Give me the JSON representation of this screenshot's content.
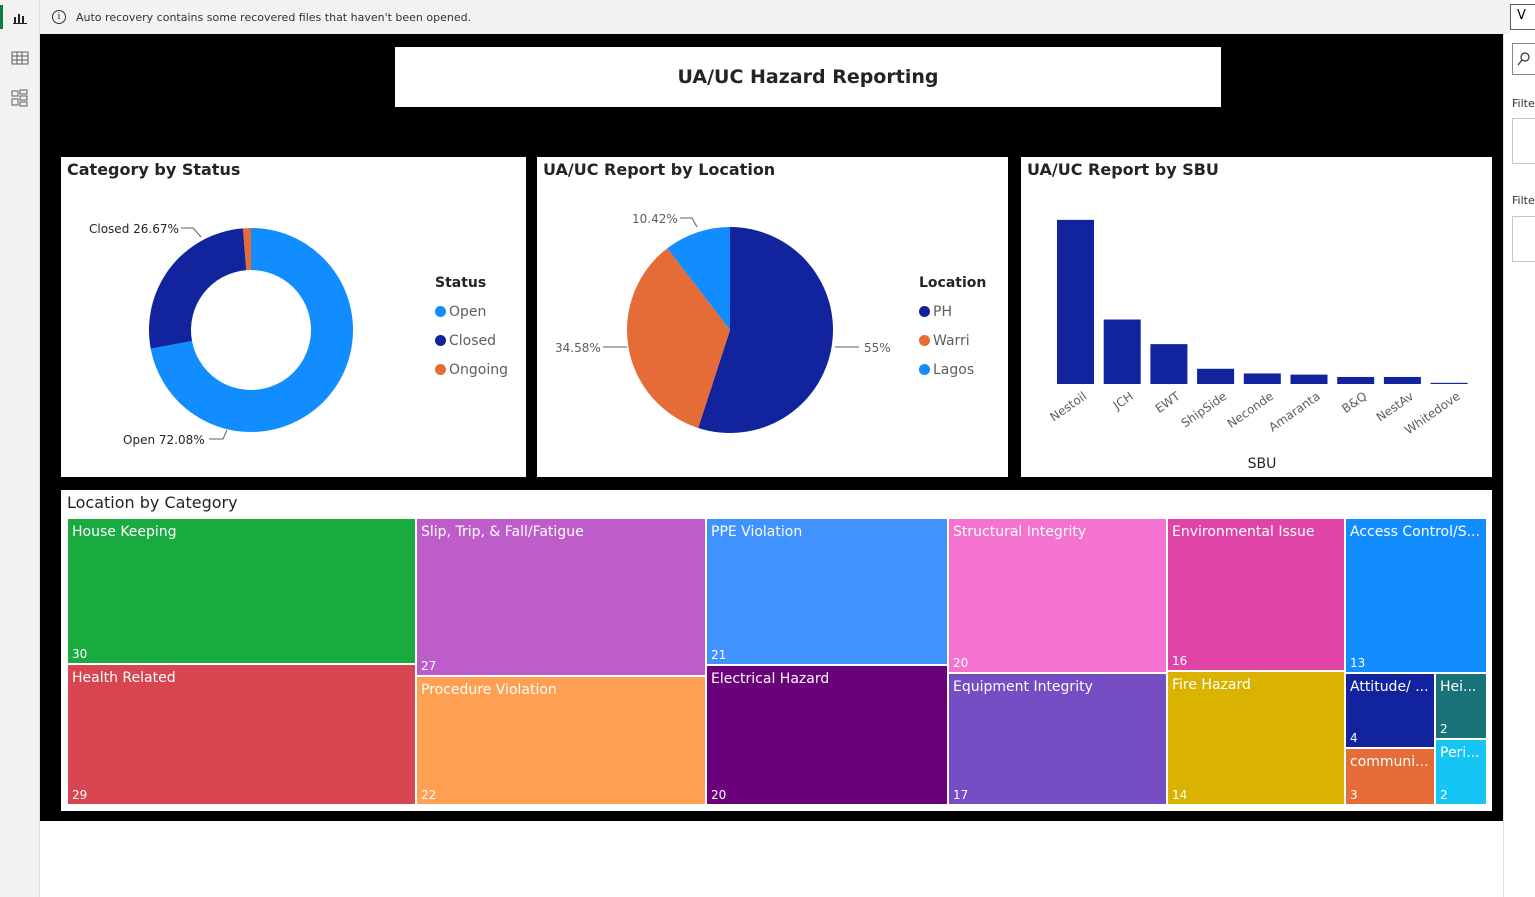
{
  "notification": {
    "text": "Auto recovery contains some recovered files that haven't been opened."
  },
  "top_right": {
    "label": "V"
  },
  "left_rail": {
    "items": [
      "report-view-icon",
      "table-view-icon",
      "model-view-icon"
    ]
  },
  "report": {
    "title": "UA/UC Hazard Reporting"
  },
  "donut": {
    "title": "Category by Status",
    "legend_title": "Status",
    "legend": [
      {
        "label": "Open",
        "color": "#118DFF"
      },
      {
        "label": "Closed",
        "color": "#12239E"
      },
      {
        "label": "Ongoing",
        "color": "#E66C37"
      }
    ],
    "labels": {
      "closed": "Closed 26.67%",
      "open": "Open 72.08%"
    }
  },
  "pie": {
    "title": "UA/UC Report by Location",
    "legend_title": "Location",
    "legend": [
      {
        "label": "PH",
        "color": "#12239E"
      },
      {
        "label": "Warri",
        "color": "#E66C37"
      },
      {
        "label": "Lagos",
        "color": "#118DFF"
      }
    ],
    "labels": {
      "lagos": "10.42%",
      "warri": "34.58%",
      "ph": "55%"
    }
  },
  "bar": {
    "title": "UA/UC Report by SBU",
    "xlabel": "SBU"
  },
  "treemap": {
    "title": "Location by Category",
    "cells": [
      {
        "label": "House Keeping",
        "value": "30",
        "color": "#1AAB40"
      },
      {
        "label": "Health Related",
        "value": "29",
        "color": "#D64550"
      },
      {
        "label": "Slip, Trip, & Fall/Fatigue",
        "value": "27",
        "color": "#BE5DC9"
      },
      {
        "label": "Procedure Violation",
        "value": "22",
        "color": "#FF9F52"
      },
      {
        "label": "PPE Violation",
        "value": "21",
        "color": "#4092FF"
      },
      {
        "label": "Electrical Hazard",
        "value": "20",
        "color": "#6B007B"
      },
      {
        "label": "Structural Integrity",
        "value": "20",
        "color": "#F472D0"
      },
      {
        "label": "Equipment Integrity",
        "value": "17",
        "color": "#744EC2"
      },
      {
        "label": "Environmental Issue",
        "value": "16",
        "color": "#E044A7"
      },
      {
        "label": "Fire Hazard",
        "value": "14",
        "color": "#D9B300"
      },
      {
        "label": "Access Control/S...",
        "value": "13",
        "color": "#118DFF"
      },
      {
        "label": "Attitude/ ...",
        "value": "4",
        "color": "#12239E"
      },
      {
        "label": "Hei...",
        "value": "2",
        "color": "#197278"
      },
      {
        "label": "communi...",
        "value": "3",
        "color": "#E66C37"
      },
      {
        "label": "Peri...",
        "value": "2",
        "color": "#15C6F4"
      }
    ]
  },
  "filters_pane": {
    "label1": "Filte",
    "label2": "Filte"
  },
  "chart_data": [
    {
      "type": "pie",
      "title": "Category by Status",
      "donut": true,
      "categories": [
        "Open",
        "Closed",
        "Ongoing"
      ],
      "values": [
        72.08,
        26.67,
        1.25
      ],
      "colors": [
        "#118DFF",
        "#12239E",
        "#E66C37"
      ],
      "legend_position": "right"
    },
    {
      "type": "pie",
      "title": "UA/UC Report by Location",
      "categories": [
        "PH",
        "Warri",
        "Lagos"
      ],
      "values": [
        55,
        34.58,
        10.42
      ],
      "colors": [
        "#12239E",
        "#E66C37",
        "#118DFF"
      ],
      "legend_position": "right"
    },
    {
      "type": "bar",
      "title": "UA/UC Report by SBU",
      "xlabel": "SBU",
      "categories": [
        "Nestoil",
        "JCH",
        "EWT",
        "ShipSide",
        "Neconde",
        "Amaranta",
        "B&Q",
        "NestAv",
        "Whitedove"
      ],
      "values": [
        140,
        55,
        34,
        13,
        9,
        8,
        6,
        6,
        1
      ],
      "ylim": [
        0,
        145
      ],
      "color": "#12239E"
    },
    {
      "type": "treemap",
      "title": "Location by Category",
      "categories": [
        "House Keeping",
        "Health Related",
        "Slip, Trip, & Fall/Fatigue",
        "Procedure Violation",
        "PPE Violation",
        "Electrical Hazard",
        "Structural Integrity",
        "Equipment Integrity",
        "Environmental Issue",
        "Fire Hazard",
        "Access Control/S...",
        "Attitude/ ...",
        "Hei...",
        "communi...",
        "Peri..."
      ],
      "values": [
        30,
        29,
        27,
        22,
        21,
        20,
        20,
        17,
        16,
        14,
        13,
        4,
        2,
        3,
        2
      ]
    }
  ]
}
